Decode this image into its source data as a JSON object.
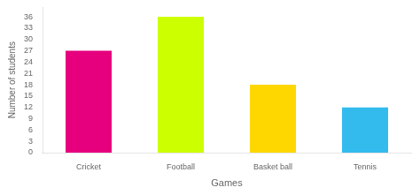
{
  "chart_data": {
    "type": "bar",
    "categories": [
      "Cricket",
      "Football",
      "Basket ball",
      "Tennis"
    ],
    "values": [
      27,
      36,
      18,
      12
    ],
    "colors": [
      "#E6007E",
      "#CCFF00",
      "#FFD700",
      "#33BBEE"
    ],
    "xlabel": "Games",
    "ylabel": "Number of students",
    "ylim": [
      0,
      38.5
    ],
    "yticks": [
      0,
      3,
      6,
      9,
      12,
      15,
      18,
      21,
      24,
      27,
      30,
      33,
      36
    ],
    "grid": false
  }
}
